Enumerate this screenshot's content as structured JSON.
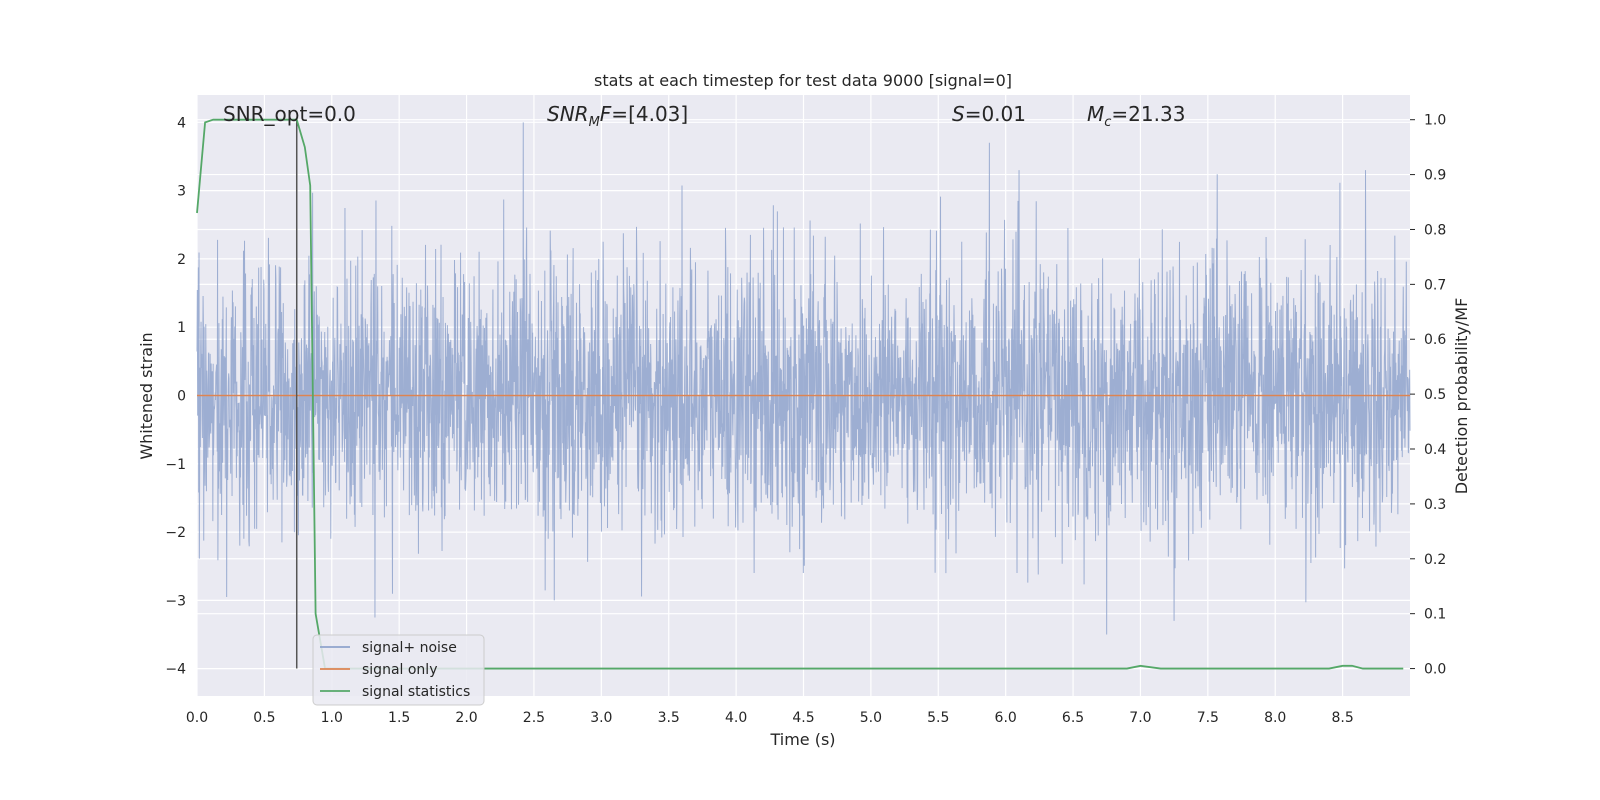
{
  "chart_data": {
    "type": "line",
    "title": "stats at each timestep for test data 9000 [signal=0]",
    "xlabel": "Time (s)",
    "ylabel_left": "Whitened strain",
    "ylabel_right": "Detection probability/MF",
    "xlim": [
      0.0,
      9.0
    ],
    "ylim_left": [
      -4.4,
      4.4
    ],
    "ylim_right": [
      -0.05,
      1.045
    ],
    "xticks": [
      "0.0",
      "0.5",
      "1.0",
      "1.5",
      "2.0",
      "2.5",
      "3.0",
      "3.5",
      "4.0",
      "4.5",
      "5.0",
      "5.5",
      "6.0",
      "6.5",
      "7.0",
      "7.5",
      "8.0",
      "8.5"
    ],
    "yticks_left": [
      "4",
      "3",
      "2",
      "1",
      "0",
      "−1",
      "−2",
      "−3",
      "−4"
    ],
    "yticks_right": [
      "1.0",
      "0.9",
      "0.8",
      "0.7",
      "0.6",
      "0.5",
      "0.4",
      "0.3",
      "0.2",
      "0.1",
      "0.0"
    ],
    "grid": true,
    "legend_position": "lower-left",
    "annotations": {
      "snr_opt": "SNR_opt=0.0",
      "snr_mf": "[4.03]",
      "s_val": "=0.01",
      "mc_val": "=21.33"
    },
    "series": [
      {
        "name": "signal+ noise",
        "axis": "left",
        "color": "#8fa3cc",
        "style": "dense noise, approx. N(0,1), range about -3.5 to 4.0",
        "peaks": [
          [
            2.42,
            4.0
          ],
          [
            5.88,
            3.7
          ],
          [
            6.75,
            -3.5
          ],
          [
            1.32,
            -3.25
          ],
          [
            0.22,
            -2.95
          ],
          [
            2.65,
            -3.0
          ]
        ]
      },
      {
        "name": "signal only",
        "axis": "left",
        "color": "#dd8452",
        "x": [
          0.0,
          9.0
        ],
        "y": [
          0.0,
          0.0
        ]
      },
      {
        "name": "signal statistics",
        "axis": "right",
        "color": "#55a868",
        "x": [
          0.0,
          0.06,
          0.12,
          0.2,
          0.4,
          0.6,
          0.74,
          0.8,
          0.84,
          0.88,
          0.95,
          1.5,
          3.0,
          5.0,
          6.9,
          7.0,
          7.15,
          7.5,
          8.0,
          8.4,
          8.5,
          8.57,
          8.65,
          8.95
        ],
        "y": [
          0.83,
          0.995,
          1.0,
          1.0,
          1.0,
          1.0,
          1.0,
          0.95,
          0.88,
          0.1,
          0.0,
          0.0,
          0.0,
          0.0,
          0.0,
          0.005,
          0.0,
          0.0,
          0.0,
          0.0,
          0.005,
          0.005,
          0.0,
          0.0
        ]
      }
    ],
    "vertical_line": {
      "x": 0.74,
      "color": "#555555"
    }
  }
}
